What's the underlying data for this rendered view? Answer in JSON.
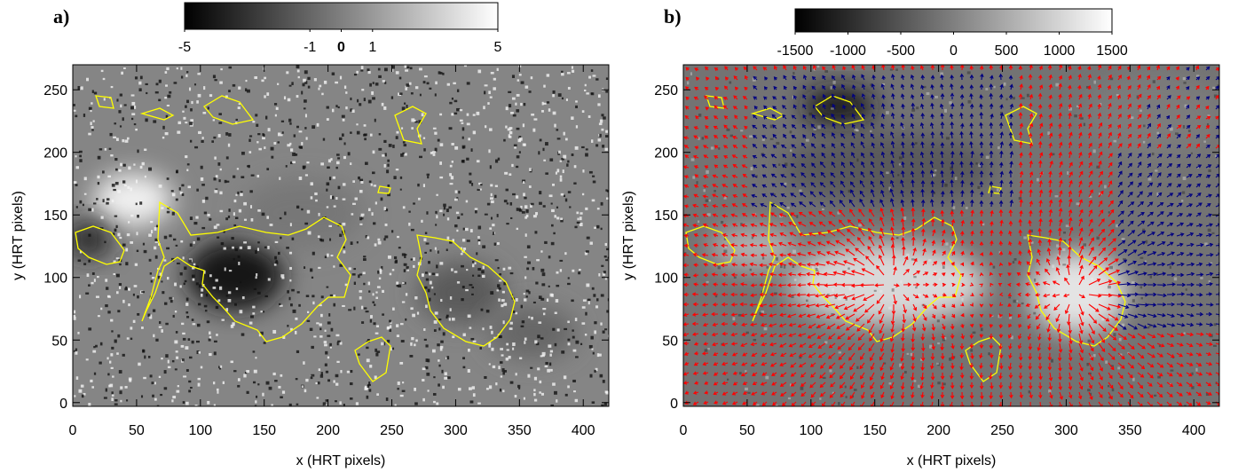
{
  "chart_data": [
    {
      "type": "image",
      "panel_label": "a)",
      "xlabel": "x (HRT pixels)",
      "ylabel": "y (HRT pixels)",
      "xlim": [
        0,
        420
      ],
      "ylim": [
        -3,
        270
      ],
      "xticks": [
        0,
        50,
        100,
        150,
        200,
        250,
        300,
        350,
        400
      ],
      "yticks": [
        0,
        50,
        100,
        150,
        200,
        250
      ],
      "colorbar": {
        "lim": [
          -5,
          5
        ],
        "ticks": [
          -5,
          -1,
          0,
          1,
          5
        ]
      },
      "contour_color": "#ffff00"
    },
    {
      "type": "image",
      "panel_label": "b)",
      "xlabel": "x (HRT pixels)",
      "ylabel": "y (HRT pixels)",
      "xlim": [
        0,
        420
      ],
      "ylim": [
        -3,
        270
      ],
      "xticks": [
        0,
        50,
        100,
        150,
        200,
        250,
        300,
        350,
        400
      ],
      "yticks": [
        0,
        50,
        100,
        150,
        200,
        250
      ],
      "colorbar": {
        "lim": [
          -1500,
          1500
        ],
        "ticks": [
          -1500,
          -1000,
          -500,
          0,
          500,
          1000,
          1500
        ]
      },
      "contour_color": "#ffff00",
      "arrow_colors": [
        "#ff0000",
        "#000080"
      ]
    }
  ]
}
